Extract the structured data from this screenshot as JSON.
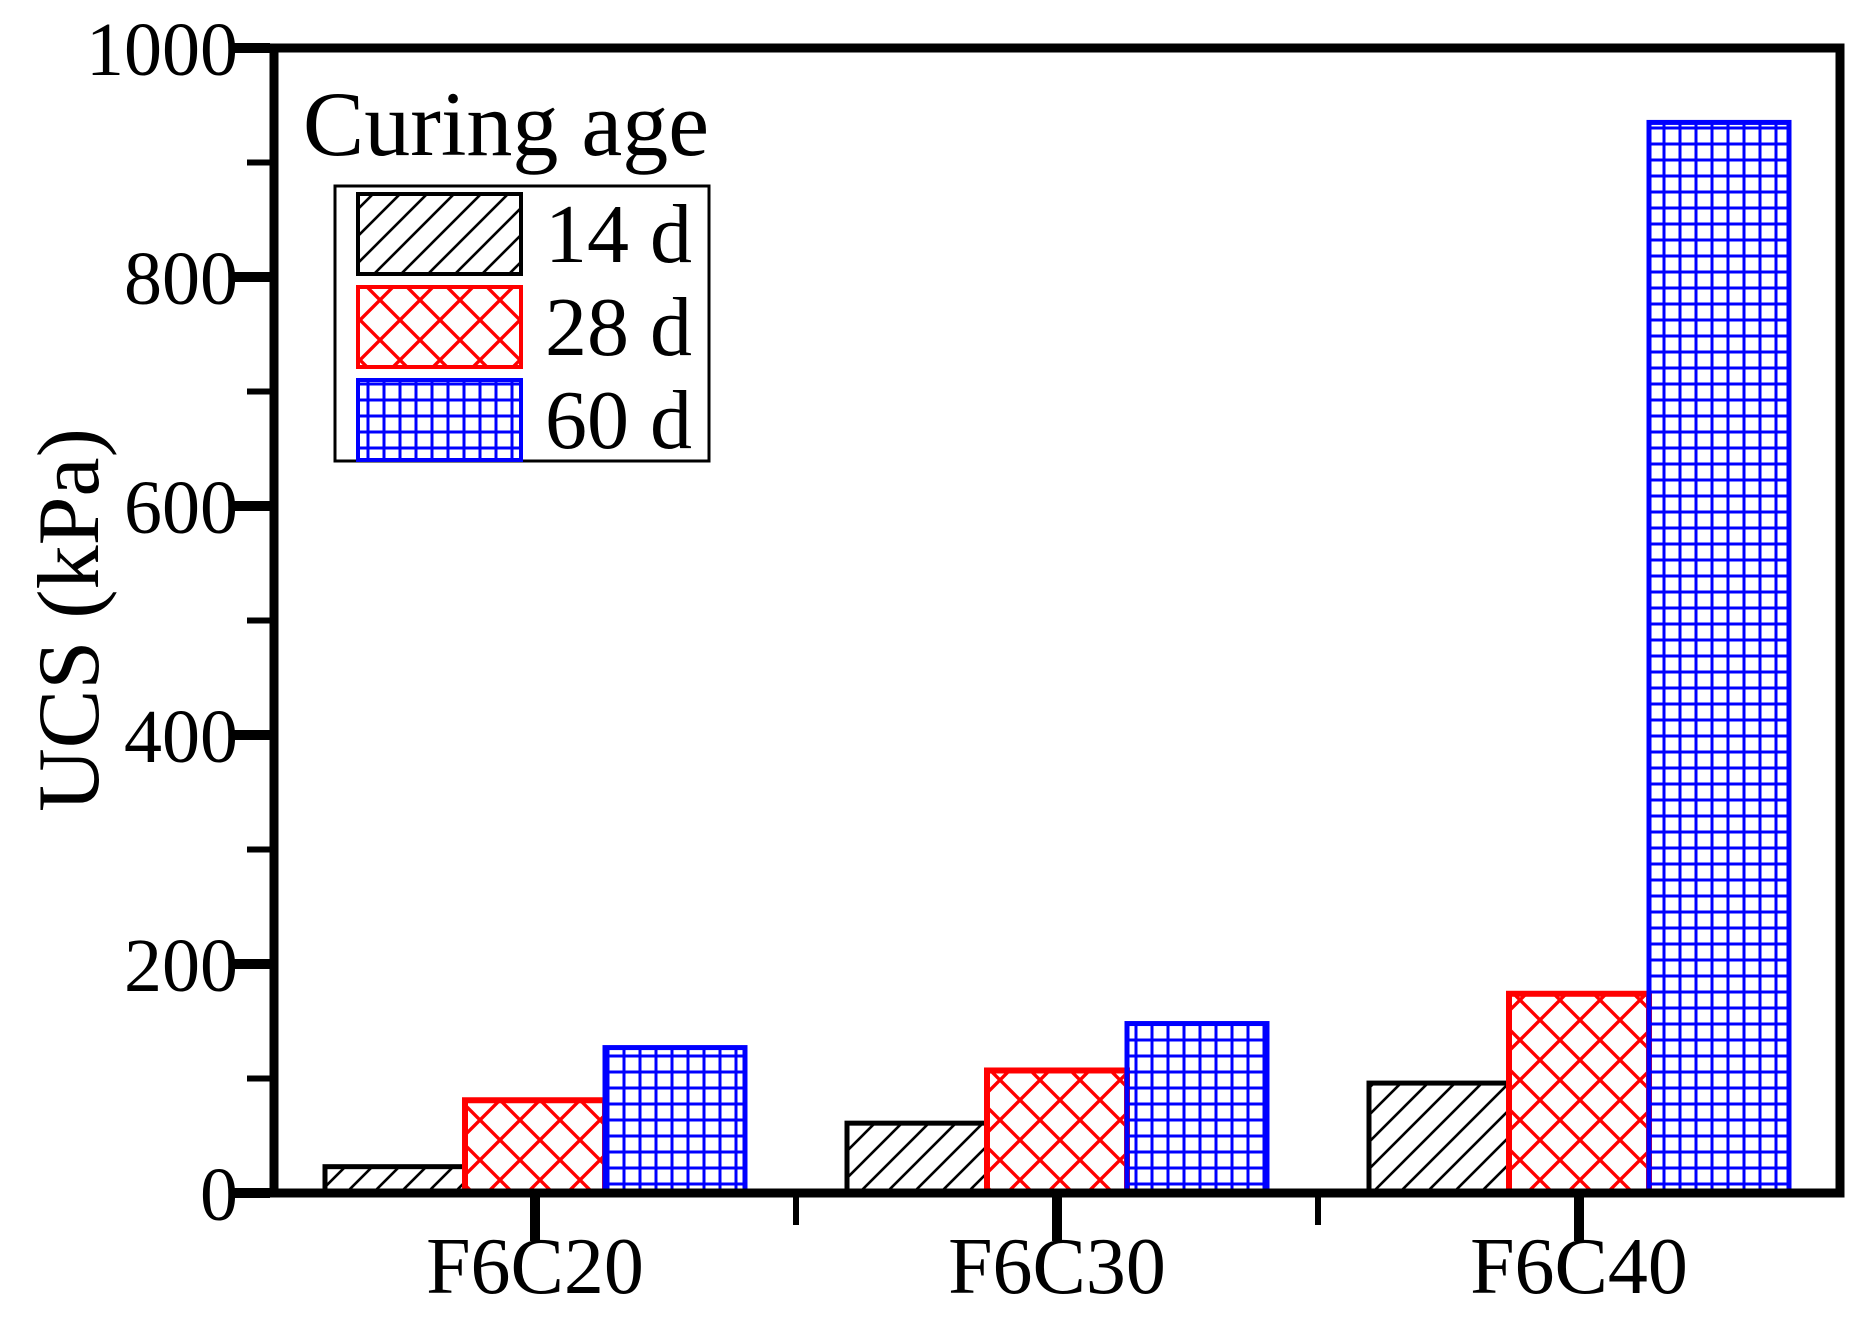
{
  "chart_data": {
    "type": "bar",
    "title": "",
    "categories": [
      "F6C20",
      "F6C30",
      "F6C40"
    ],
    "series": [
      {
        "name": "14 d",
        "color": "#000000",
        "pattern": "diagonal",
        "values": [
          23,
          61,
          96
        ]
      },
      {
        "name": "28 d",
        "color": "#ff0000",
        "pattern": "crosshatch",
        "values": [
          81,
          107,
          174
        ]
      },
      {
        "name": "60 d",
        "color": "#0000ff",
        "pattern": "grid",
        "values": [
          127,
          148,
          935
        ]
      }
    ],
    "xlabel": "",
    "ylabel": "UCS (kPa)",
    "ylim": [
      0,
      1000
    ],
    "yticks": [
      0,
      200,
      400,
      600,
      800,
      1000
    ],
    "y_minor_step": 100,
    "grid": false,
    "legend_title": "Curing age",
    "legend_position": "top-left",
    "axis_color": "#000000",
    "background_color": "#ffffff"
  }
}
